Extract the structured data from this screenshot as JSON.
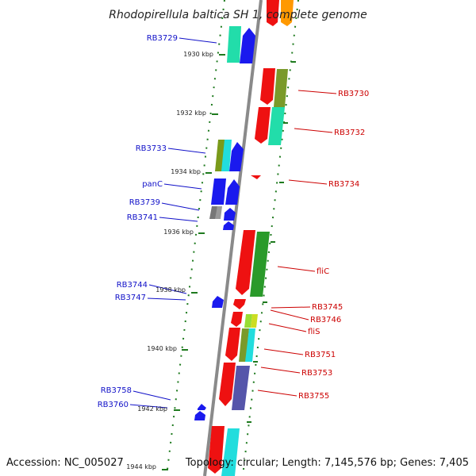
{
  "title": "Rhodopirellula baltica SH 1, complete genome",
  "footer": {
    "accession": "Accession: NC_005027",
    "summary": "Topology: circular; Length: 7,145,576 bp; Genes: 7,405"
  },
  "colors": {
    "backbone": "#8a8a8a",
    "tick": "#1e7a1e",
    "forward_label": "#1010c8",
    "reverse_label": "#cc0000"
  },
  "position_labels": [
    "1930 kbp",
    "1932 kbp",
    "1934 kbp",
    "1936 kbp",
    "1938 kbp",
    "1940 kbp",
    "1942 kbp",
    "1944 kbp"
  ],
  "forward_genes": [
    "RB3729",
    "RB3733",
    "panC",
    "RB3739",
    "RB3741",
    "RB3744",
    "RB3747",
    "RB3758",
    "RB3760"
  ],
  "reverse_genes": [
    "RB3730",
    "RB3732",
    "RB3734",
    "fliC",
    "RB3745",
    "RB3746",
    "fliS",
    "RB3751",
    "RB3753",
    "RB3755"
  ]
}
